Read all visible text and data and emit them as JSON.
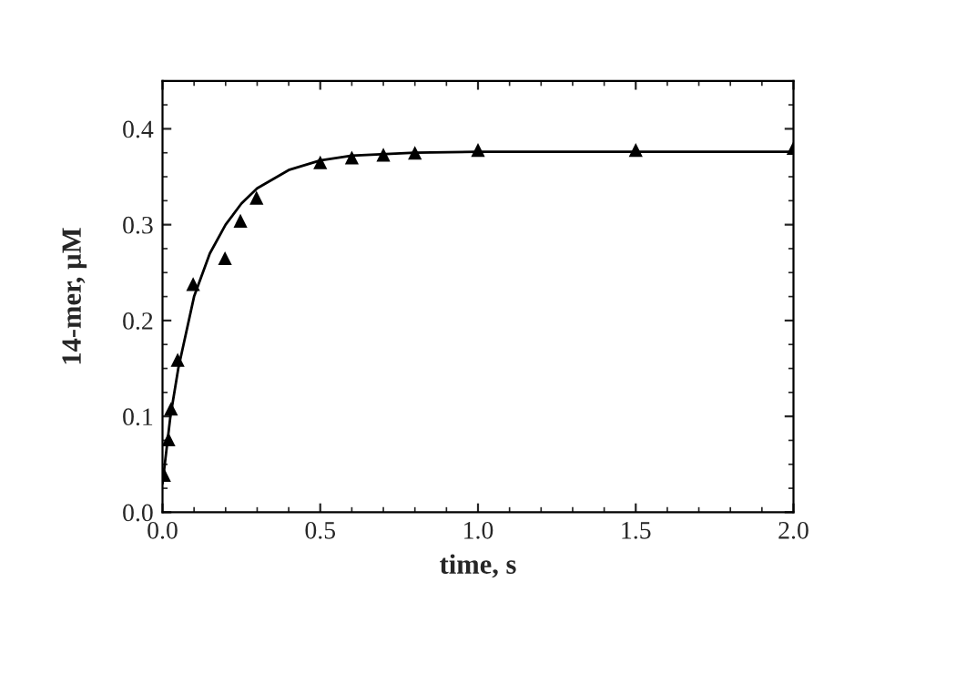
{
  "chart_data": {
    "type": "scatter",
    "xlabel": "time, s",
    "ylabel": "14-mer, µM",
    "xlim": [
      0,
      2.0
    ],
    "ylim": [
      0,
      0.45
    ],
    "xticks": [
      {
        "value": 0,
        "label": "0.0"
      },
      0.5,
      {
        "value": 1,
        "label": "1.0"
      },
      1.5,
      {
        "value": 2,
        "label": "2.0"
      }
    ],
    "yticks": [
      {
        "value": 0,
        "label": "0.0"
      },
      0.1,
      0.2,
      0.3,
      0.4
    ],
    "grid": false,
    "legend": false,
    "series": [
      {
        "marker": "triangle",
        "color": "#000000",
        "x": [
          0.005,
          0.019,
          0.027,
          0.048,
          0.097,
          0.198,
          0.247,
          0.298,
          0.5,
          0.6,
          0.7,
          0.8,
          1.0,
          1.5,
          2.0
        ],
        "values": [
          0.039,
          0.076,
          0.108,
          0.159,
          0.238,
          0.265,
          0.304,
          0.328,
          0.365,
          0.37,
          0.373,
          0.375,
          0.378,
          0.378,
          0.38
        ]
      },
      {
        "type": "line",
        "marker": "none",
        "line_style": "solid",
        "color": "#000000",
        "x": [
          0,
          0.025,
          0.05,
          0.1,
          0.15,
          0.2,
          0.25,
          0.3,
          0.4,
          0.5,
          0.6,
          0.8,
          1.0,
          1.5,
          2.0
        ],
        "values": [
          0.03,
          0.1,
          0.15,
          0.225,
          0.27,
          0.3,
          0.322,
          0.338,
          0.357,
          0.367,
          0.372,
          0.375,
          0.376,
          0.376,
          0.376
        ]
      }
    ]
  }
}
